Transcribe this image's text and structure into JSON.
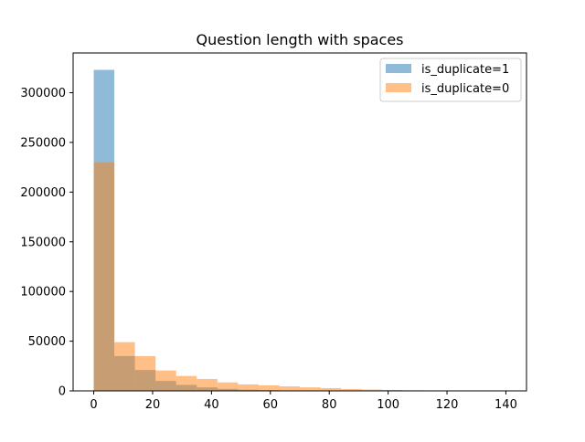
{
  "chart_data": {
    "type": "bar",
    "title": "Question length with spaces",
    "xlabel": "",
    "ylabel": "",
    "xlim": [
      -7,
      147
    ],
    "ylim": [
      0,
      340000
    ],
    "x_ticks": [
      0,
      20,
      40,
      60,
      80,
      100,
      120,
      140
    ],
    "y_ticks": [
      0,
      50000,
      100000,
      150000,
      200000,
      250000,
      300000
    ],
    "grid": false,
    "legend_position": "top-right",
    "bin_edges": [
      0,
      7,
      14,
      21,
      28,
      35,
      42,
      49,
      56,
      63,
      70,
      77,
      84,
      91,
      98,
      105,
      112,
      119,
      126,
      133,
      140
    ],
    "series": [
      {
        "name": "is_duplicate=1",
        "color": "#1f77b4",
        "opacity": 0.5,
        "values": [
          323000,
          35000,
          21000,
          10000,
          6000,
          3500,
          2000,
          1200,
          800,
          500,
          350,
          250,
          150,
          100,
          80,
          50,
          30,
          20,
          10,
          5
        ]
      },
      {
        "name": "is_duplicate=0",
        "color": "#ff7f0e",
        "opacity": 0.5,
        "values": [
          230000,
          49000,
          35000,
          20500,
          15000,
          12000,
          8500,
          6500,
          5500,
          4500,
          3500,
          2800,
          1900,
          1300,
          900,
          600,
          400,
          200,
          100,
          50
        ]
      }
    ]
  }
}
